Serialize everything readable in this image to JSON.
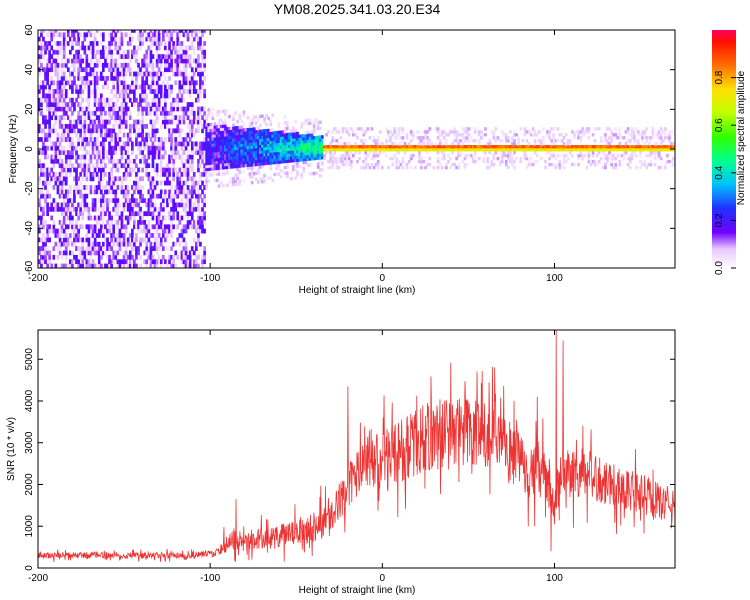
{
  "title": "YM08.2025.341.03.20.E34",
  "chart_data": [
    {
      "type": "heatmap",
      "title": "YM08.2025.341.03.20.E34",
      "xlabel": "Height of straight line (km)",
      "ylabel": "Frequency (Hz)",
      "xlim": [
        -200,
        170
      ],
      "ylim": [
        -60,
        60
      ],
      "xticks": [
        "-200",
        "-100",
        "0",
        "100"
      ],
      "yticks": [
        "-60",
        "-40",
        "-20",
        "0",
        "20",
        "40",
        "60"
      ],
      "colorbar": {
        "label": "Normalized spectral amplitude",
        "range": [
          0,
          1
        ],
        "ticks": [
          "0.0",
          "0.2",
          "0.4",
          "0.6",
          "0.8"
        ]
      },
      "regions": [
        {
          "x_range": [
            -200,
            -103
          ],
          "description": "scattered noise, amplitude 0.05-0.2, full frequency band"
        },
        {
          "x_range": [
            -103,
            -35
          ],
          "center_hz": 0,
          "halfwidth_hz": [
            12,
            6
          ],
          "amplitude": [
            0.2,
            0.5
          ]
        },
        {
          "x_range": [
            -35,
            170
          ],
          "center_hz": 0,
          "halfwidth_hz": 2,
          "amplitude": [
            0.7,
            1.0
          ]
        }
      ]
    },
    {
      "type": "line",
      "xlabel": "Height of straight line (km)",
      "ylabel": "SNR (10 * v/v)",
      "xlim": [
        -200,
        170
      ],
      "ylim": [
        0,
        5700
      ],
      "xticks": [
        "-200",
        "-100",
        "0",
        "100"
      ],
      "yticks": [
        "0",
        "1000",
        "2000",
        "3000",
        "4000",
        "5000"
      ],
      "series": [
        {
          "name": "SNR",
          "color": "#ee3333",
          "x": [
            -200,
            -180,
            -160,
            -140,
            -120,
            -105,
            -95,
            -90,
            -85,
            -80,
            -70,
            -60,
            -50,
            -40,
            -30,
            -25,
            -20,
            -15,
            -10,
            0,
            10,
            20,
            30,
            40,
            50,
            60,
            70,
            80,
            85,
            90,
            95,
            100,
            105,
            110,
            120,
            130,
            140,
            150,
            160,
            170
          ],
          "values": [
            300,
            300,
            310,
            300,
            300,
            320,
            380,
            650,
            650,
            650,
            700,
            750,
            850,
            1000,
            1200,
            1600,
            2000,
            2200,
            2400,
            2600,
            2800,
            3000,
            3200,
            3300,
            3300,
            3100,
            2900,
            2600,
            2400,
            2300,
            2200,
            1400,
            2300,
            2300,
            2200,
            2100,
            1900,
            1800,
            1600,
            1500
          ]
        }
      ],
      "spikes": [
        {
          "x": -20,
          "y": 4350
        },
        {
          "x": -85,
          "y": 1650
        },
        {
          "x": 62,
          "y": 4450
        },
        {
          "x": 90,
          "y": 4100
        },
        {
          "x": 101,
          "y": 5700
        },
        {
          "x": 105,
          "y": 5450
        },
        {
          "x": 98,
          "y": 400
        }
      ]
    }
  ],
  "colors": {
    "line": "#ee3333",
    "axis": "#000000"
  }
}
